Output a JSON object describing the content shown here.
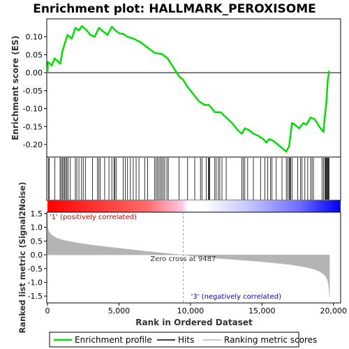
{
  "title": "Enrichment plot: HALLMARK_PEROXISOME",
  "colors": {
    "enrichment_line": "#00dd00",
    "hits": "#000000",
    "metric_fill": "#b4b4b4",
    "positive_label": "#cc0000",
    "negative_label": "#0000cc",
    "heat_positive": "#ff0000",
    "heat_negative": "#0000ff"
  },
  "chart_data": [
    {
      "type": "line",
      "name": "enrichment",
      "ylabel": "Enrichment score (ES)",
      "xlim": [
        0,
        20500
      ],
      "ylim": [
        -0.235,
        0.15
      ],
      "yticks": [
        -0.2,
        -0.15,
        -0.1,
        -0.05,
        0.0,
        0.05,
        0.1
      ],
      "ytick_labels": [
        "-0.20",
        "-0.15",
        "-0.10",
        "-0.05",
        "0.00",
        "0.05",
        "0.10"
      ],
      "grid": false,
      "series": [
        {
          "x": [
            0,
            40,
            300,
            500,
            900,
            1050,
            1200,
            1400,
            1700,
            1950,
            2200,
            2400,
            2700,
            3000,
            3300,
            3600,
            3900,
            4200,
            4500,
            4700,
            5000,
            5300,
            5600,
            6000,
            6500,
            7000,
            7500,
            8000,
            8400,
            8800,
            9200,
            9487,
            9800,
            10200,
            10600,
            11000,
            11300,
            11700,
            12100,
            12500,
            12900,
            13300,
            13600,
            13800,
            14100,
            14400,
            14700,
            14900,
            15100,
            15300,
            15500,
            15800,
            16100,
            16400,
            16700,
            16900,
            17100,
            17300,
            17600,
            17900,
            18100,
            18400,
            18700,
            19000,
            19300,
            19400,
            19500,
            19600,
            19700
          ],
          "y": [
            0.0,
            0.03,
            0.02,
            0.04,
            0.025,
            0.06,
            0.08,
            0.105,
            0.095,
            0.125,
            0.118,
            0.13,
            0.12,
            0.105,
            0.1,
            0.125,
            0.115,
            0.105,
            0.128,
            0.12,
            0.11,
            0.108,
            0.1,
            0.095,
            0.085,
            0.07,
            0.055,
            0.052,
            0.04,
            0.015,
            -0.01,
            -0.02,
            -0.04,
            -0.06,
            -0.08,
            -0.09,
            -0.09,
            -0.11,
            -0.11,
            -0.125,
            -0.14,
            -0.16,
            -0.17,
            -0.155,
            -0.16,
            -0.17,
            -0.175,
            -0.18,
            -0.185,
            -0.195,
            -0.185,
            -0.19,
            -0.2,
            -0.21,
            -0.22,
            -0.205,
            -0.14,
            -0.145,
            -0.155,
            -0.14,
            -0.145,
            -0.125,
            -0.13,
            -0.15,
            -0.165,
            -0.12,
            -0.085,
            -0.02,
            0.005
          ]
        }
      ]
    },
    {
      "type": "hits",
      "name": "hits",
      "positions": [
        60,
        120,
        520,
        880,
        960,
        1040,
        1120,
        1200,
        1280,
        1360,
        1450,
        1600,
        1950,
        2050,
        2200,
        2380,
        2500,
        2650,
        3150,
        3500,
        3600,
        3700,
        4000,
        4300,
        4500,
        4650,
        4700,
        4800,
        5300,
        5450,
        5600,
        5800,
        6000,
        6200,
        6400,
        6800,
        7000,
        7500,
        7600,
        7700,
        7800,
        7900,
        8000,
        8100,
        8200,
        8350,
        8450,
        9200,
        9800,
        10300,
        10700,
        10800,
        11100,
        11250,
        11300,
        11350,
        11700,
        11800,
        11950,
        12050,
        12200,
        12500,
        13600,
        13700,
        13800,
        14000,
        14400,
        14900,
        15200,
        15400,
        15600,
        15700,
        16000,
        16400,
        16700,
        16800,
        16900,
        16950,
        17000,
        17100,
        17500,
        17700,
        17800,
        18000,
        18200,
        18400,
        18500,
        18600,
        19200,
        19300,
        19400,
        19450,
        19500,
        19550,
        19600,
        19650,
        19700
      ]
    },
    {
      "type": "area",
      "name": "ranked_metric",
      "xlabel": "Rank in Ordered Dataset",
      "ylabel": "Ranked list metric (Signal2Noise)",
      "xlim": [
        0,
        20500
      ],
      "ylim": [
        -1.75,
        1.55
      ],
      "xticks": [
        0,
        5000,
        10000,
        15000,
        20000
      ],
      "xtick_labels": [
        "0",
        "5,000",
        "10,000",
        "15,000",
        "20,000"
      ],
      "yticks": [
        -1.5,
        -1.0,
        -0.5,
        0.0,
        0.5,
        1.0,
        1.5
      ],
      "ytick_labels": [
        "-1.5",
        "-1.0",
        "-0.5",
        "0.0",
        "0.5",
        "1.0",
        "1.5"
      ],
      "x": [
        0,
        30,
        100,
        300,
        600,
        1000,
        1500,
        2000,
        3000,
        4000,
        5000,
        6000,
        7000,
        8000,
        9000,
        9487,
        10000,
        11000,
        12000,
        13000,
        14000,
        15000,
        16000,
        17000,
        18000,
        18600,
        19000,
        19300,
        19500,
        19600,
        19680,
        19730
      ],
      "y": [
        1.5,
        0.95,
        0.85,
        0.72,
        0.62,
        0.55,
        0.49,
        0.44,
        0.36,
        0.3,
        0.24,
        0.18,
        0.12,
        0.07,
        0.02,
        0.0,
        -0.04,
        -0.09,
        -0.13,
        -0.17,
        -0.21,
        -0.25,
        -0.3,
        -0.36,
        -0.44,
        -0.52,
        -0.6,
        -0.7,
        -0.82,
        -0.95,
        -1.2,
        -1.55
      ],
      "zero_cross_rank": 9487
    }
  ],
  "annotations": {
    "zero_cross": "Zero cross at 9487",
    "positive": "'1' (positively correlated)",
    "negative": "'3' (negatively correlated)"
  },
  "legend": {
    "items": [
      "Enrichment profile",
      "Hits",
      "Ranking metric scores"
    ]
  }
}
